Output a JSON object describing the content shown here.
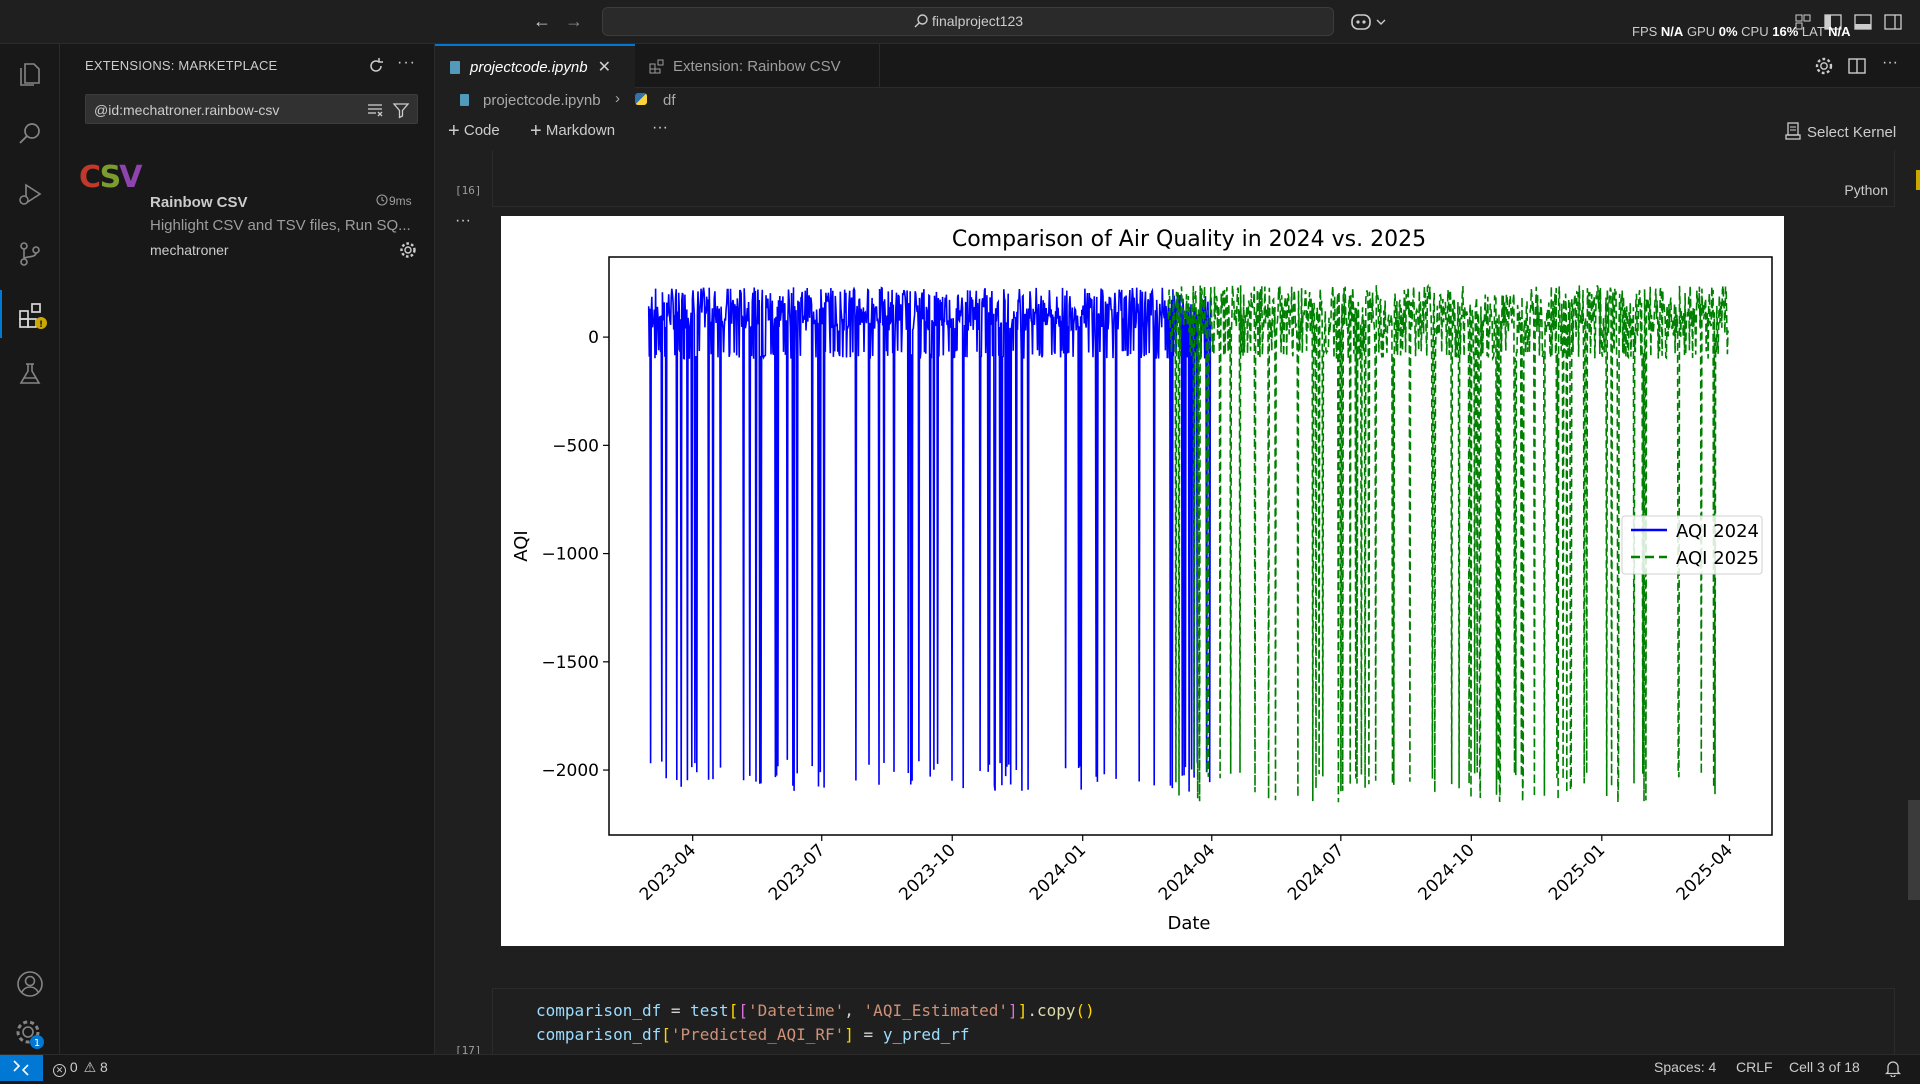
{
  "titlebar": {
    "search_text": "finalproject123",
    "perf": {
      "fps_label": "FPS",
      "fps_value": "N/A",
      "gpu_label": "GPU",
      "gpu_value": "0%",
      "cpu_label": "CPU",
      "cpu_value": "16%",
      "lat_label": "LAT",
      "lat_value": "N/A"
    }
  },
  "activitybar": {
    "items": [
      "explorer-icon",
      "search-icon",
      "run-debug-icon",
      "source-control-icon",
      "extensions-icon",
      "testing-icon"
    ],
    "bottom": [
      "accounts-icon",
      "manage-gear-icon"
    ],
    "manage_badge": "1"
  },
  "sidebar": {
    "title": "EXTENSIONS: MARKETPLACE",
    "search_value": "@id:mechatroner.rainbow-csv",
    "extension": {
      "name": "Rainbow CSV",
      "description": "Highlight CSV and TSV files, Run SQ...",
      "publisher": "mechatroner",
      "time": "9ms",
      "logo_text": "CSV"
    }
  },
  "tabs": [
    {
      "label": "projectcode.ipynb",
      "active": true
    },
    {
      "label": "Extension: Rainbow CSV",
      "active": false
    }
  ],
  "breadcrumb": {
    "file": "projectcode.ipynb",
    "symbol": "df"
  },
  "nb_toolbar": {
    "code": "Code",
    "markdown": "Markdown",
    "more": "···",
    "kernel": "Select Kernel"
  },
  "cell": {
    "exec_count": "[16]",
    "language": "Python",
    "next_count": "[17]"
  },
  "code_lines": [
    {
      "parts": [
        [
          "comparison_df",
          "#9cdcfe"
        ],
        [
          " = ",
          "#d4d4d4"
        ],
        [
          "test",
          "#9cdcfe"
        ],
        [
          "[",
          "#ffd700"
        ],
        [
          "[",
          "#da70d6"
        ],
        [
          "'Datetime'",
          "#ce9178"
        ],
        [
          ", ",
          "#d4d4d4"
        ],
        [
          "'AQI_Estimated'",
          "#ce9178"
        ],
        [
          "]",
          "#da70d6"
        ],
        [
          "]",
          "#ffd700"
        ],
        [
          ".",
          "#d4d4d4"
        ],
        [
          "copy",
          "#dcdcaa"
        ],
        [
          "()",
          "#ffd700"
        ]
      ]
    },
    {
      "parts": [
        [
          "comparison_df",
          "#9cdcfe"
        ],
        [
          "[",
          "#ffd700"
        ],
        [
          "'Predicted_AQI_RF'",
          "#ce9178"
        ],
        [
          "]",
          "#ffd700"
        ],
        [
          " = ",
          "#d4d4d4"
        ],
        [
          "y_pred_rf",
          "#9cdcfe"
        ]
      ]
    }
  ],
  "statusbar": {
    "errors": "0",
    "warnings": "8",
    "spaces": "Spaces: 4",
    "eol": "CRLF",
    "cell": "Cell 3 of 18"
  },
  "chart_data": {
    "type": "line",
    "title": "Comparison of Air Quality in 2024 vs. 2025",
    "xlabel": "Date",
    "ylabel": "AQI",
    "x_ticks": [
      "2023-04",
      "2023-07",
      "2023-10",
      "2024-01",
      "2024-04",
      "2024-07",
      "2024-10",
      "2025-01",
      "2025-04"
    ],
    "y_ticks": [
      0,
      -500,
      -1000,
      -1500,
      -2000
    ],
    "y_tick_labels": [
      "0",
      "−500",
      "−1000",
      "−1500",
      "−2000"
    ],
    "ylim": [
      -2300,
      370
    ],
    "xlim": [
      "2023-02-01",
      "2025-05-01"
    ],
    "legend_position": "center-right",
    "grid": false,
    "series": [
      {
        "name": "AQI 2024",
        "color": "#0000ff",
        "style": "solid",
        "x_range": [
          "2023-03-01",
          "2024-03-31"
        ],
        "upper_band": [
          90,
          230
        ],
        "spikes_to": -2100,
        "typical_low": -100
      },
      {
        "name": "AQI 2025",
        "color": "#008000",
        "style": "dashed",
        "x_range": [
          "2024-03-01",
          "2025-03-31"
        ],
        "upper_band": [
          60,
          240
        ],
        "spikes_to": -2150,
        "typical_low": -100
      }
    ]
  }
}
